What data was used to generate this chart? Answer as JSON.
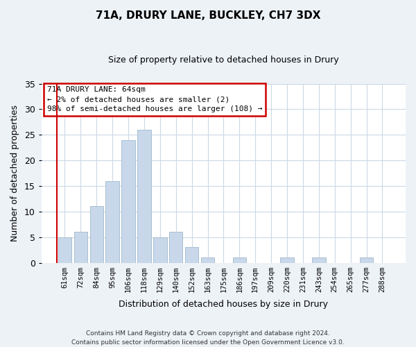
{
  "title": "71A, DRURY LANE, BUCKLEY, CH7 3DX",
  "subtitle": "Size of property relative to detached houses in Drury",
  "xlabel": "Distribution of detached houses by size in Drury",
  "ylabel": "Number of detached properties",
  "bar_labels": [
    "61sqm",
    "72sqm",
    "84sqm",
    "95sqm",
    "106sqm",
    "118sqm",
    "129sqm",
    "140sqm",
    "152sqm",
    "163sqm",
    "175sqm",
    "186sqm",
    "197sqm",
    "209sqm",
    "220sqm",
    "231sqm",
    "243sqm",
    "254sqm",
    "265sqm",
    "277sqm",
    "288sqm"
  ],
  "bar_values": [
    5,
    6,
    11,
    16,
    24,
    26,
    5,
    6,
    3,
    1,
    0,
    1,
    0,
    0,
    1,
    0,
    1,
    0,
    0,
    1,
    0
  ],
  "bar_color": "#c8d8ea",
  "bar_edge_color": "#a8bfd0",
  "highlight_color": "#cc0000",
  "ylim": [
    0,
    35
  ],
  "yticks": [
    0,
    5,
    10,
    15,
    20,
    25,
    30,
    35
  ],
  "annotation_title": "71A DRURY LANE: 64sqm",
  "annotation_line1": "← 2% of detached houses are smaller (2)",
  "annotation_line2": "98% of semi-detached houses are larger (108) →",
  "annotation_box_color": "#ffffff",
  "annotation_box_edge": "#cc0000",
  "footnote1": "Contains HM Land Registry data © Crown copyright and database right 2024.",
  "footnote2": "Contains public sector information licensed under the Open Government Licence v3.0.",
  "bg_color": "#edf2f7",
  "plot_bg_color": "#ffffff",
  "grid_color": "#ccd8e4"
}
